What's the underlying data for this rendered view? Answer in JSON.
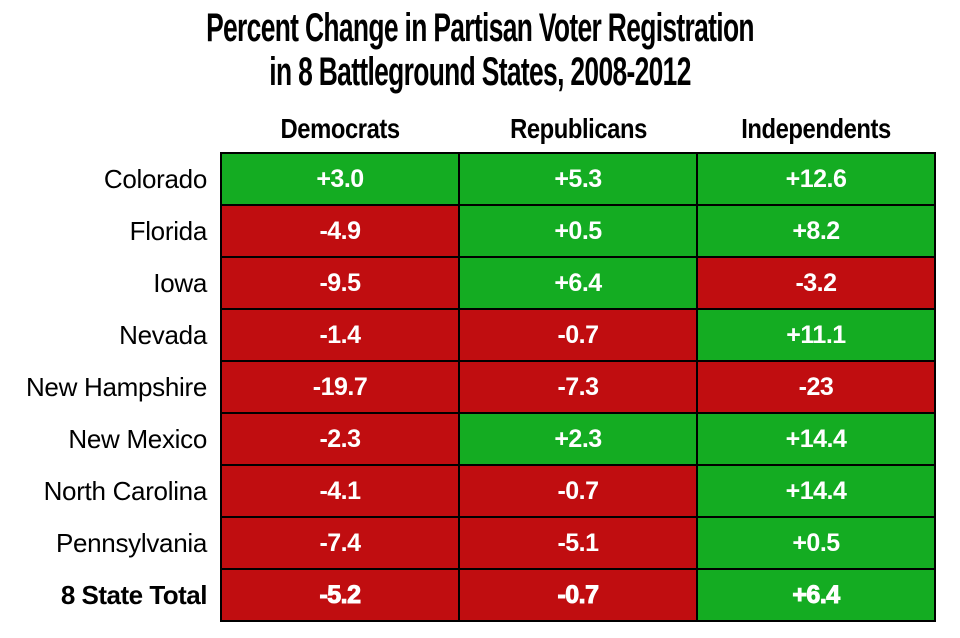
{
  "chart_data": {
    "type": "table",
    "title": "Percent Change in Partisan Voter Registration in 8 Battleground States, 2008-2012",
    "title_line1": "Percent Change in Partisan Voter Registration",
    "title_line2": "in 8 Battleground States, 2008-2012",
    "columns": [
      "Democrats",
      "Republicans",
      "Independents"
    ],
    "rows": [
      {
        "label": "Colorado",
        "emphasis": false,
        "cells": [
          {
            "text": "+3.0",
            "value": 3.0,
            "positive": true
          },
          {
            "text": "+5.3",
            "value": 5.3,
            "positive": true
          },
          {
            "text": "+12.6",
            "value": 12.6,
            "positive": true
          }
        ]
      },
      {
        "label": "Florida",
        "emphasis": false,
        "cells": [
          {
            "text": "-4.9",
            "value": -4.9,
            "positive": false
          },
          {
            "text": "+0.5",
            "value": 0.5,
            "positive": true
          },
          {
            "text": "+8.2",
            "value": 8.2,
            "positive": true
          }
        ]
      },
      {
        "label": "Iowa",
        "emphasis": false,
        "cells": [
          {
            "text": "-9.5",
            "value": -9.5,
            "positive": false
          },
          {
            "text": "+6.4",
            "value": 6.4,
            "positive": true
          },
          {
            "text": "-3.2",
            "value": -3.2,
            "positive": false
          }
        ]
      },
      {
        "label": "Nevada",
        "emphasis": false,
        "cells": [
          {
            "text": "-1.4",
            "value": -1.4,
            "positive": false
          },
          {
            "text": "-0.7",
            "value": -0.7,
            "positive": false
          },
          {
            "text": "+11.1",
            "value": 11.1,
            "positive": true
          }
        ]
      },
      {
        "label": "New Hampshire",
        "emphasis": false,
        "cells": [
          {
            "text": "-19.7",
            "value": -19.7,
            "positive": false
          },
          {
            "text": "-7.3",
            "value": -7.3,
            "positive": false
          },
          {
            "text": "-23",
            "value": -23,
            "positive": false
          }
        ]
      },
      {
        "label": "New Mexico",
        "emphasis": false,
        "cells": [
          {
            "text": "-2.3",
            "value": -2.3,
            "positive": false
          },
          {
            "text": "+2.3",
            "value": 2.3,
            "positive": true
          },
          {
            "text": "+14.4",
            "value": 14.4,
            "positive": true
          }
        ]
      },
      {
        "label": "North Carolina",
        "emphasis": false,
        "cells": [
          {
            "text": "-4.1",
            "value": -4.1,
            "positive": false
          },
          {
            "text": "-0.7",
            "value": -0.7,
            "positive": false
          },
          {
            "text": "+14.4",
            "value": 14.4,
            "positive": true
          }
        ]
      },
      {
        "label": "Pennsylvania",
        "emphasis": false,
        "cells": [
          {
            "text": "-7.4",
            "value": -7.4,
            "positive": false
          },
          {
            "text": "-5.1",
            "value": -5.1,
            "positive": false
          },
          {
            "text": "+0.5",
            "value": 0.5,
            "positive": true
          }
        ]
      },
      {
        "label": "8 State Total",
        "emphasis": true,
        "cells": [
          {
            "text": "-5.2",
            "value": -5.2,
            "positive": false
          },
          {
            "text": "-0.7",
            "value": -0.7,
            "positive": false
          },
          {
            "text": "+6.4",
            "value": 6.4,
            "positive": true
          }
        ]
      }
    ],
    "colors": {
      "positive_cell": "#14AC22",
      "negative_cell": "#C00D10",
      "border": "#000000",
      "cell_text": "#FFFFFF",
      "label_text": "#000000",
      "background": "#FFFFFF"
    },
    "layout_hints": {
      "grid": "on",
      "legend": "none",
      "value_sign_prefix": true
    }
  }
}
